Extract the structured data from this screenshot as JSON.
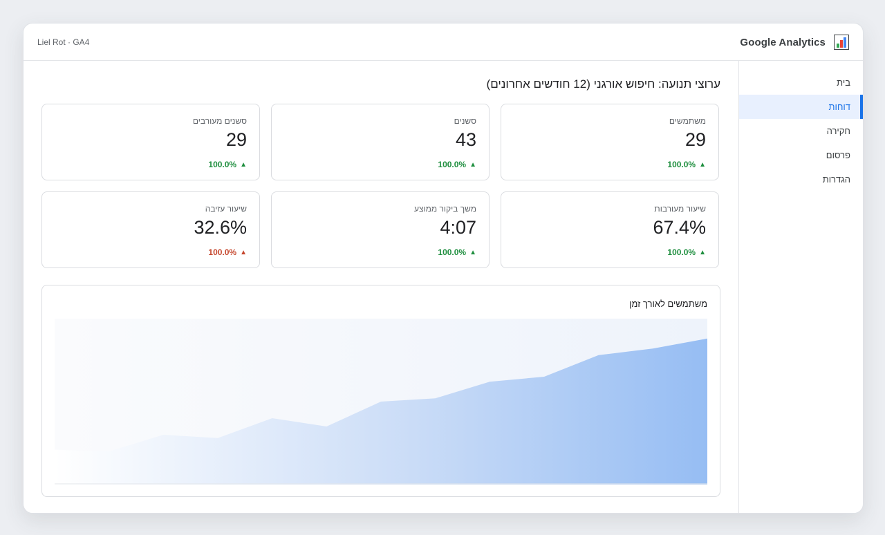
{
  "topbar": {
    "account": "Liel Rot · GA4",
    "brand": "Google Analytics",
    "logo_icon": "analytics-logo-icon"
  },
  "sidebar": {
    "items": [
      {
        "label": "בית",
        "active": false
      },
      {
        "label": "דוחות",
        "active": true
      },
      {
        "label": "חקירה",
        "active": false
      },
      {
        "label": "פרסום",
        "active": false
      },
      {
        "label": "הגדרות",
        "active": false
      }
    ]
  },
  "page_title": "ערוצי תנועה: חיפוש אורגני (12 חודשים אחרונים)",
  "metrics": [
    {
      "label": "משתמשים",
      "value": "29",
      "delta": "100.0%",
      "trend": "up",
      "color": "#1e8e3e"
    },
    {
      "label": "סשנים",
      "value": "43",
      "delta": "100.0%",
      "trend": "up",
      "color": "#1e8e3e"
    },
    {
      "label": "סשנים מעורבים",
      "value": "29",
      "delta": "100.0%",
      "trend": "up",
      "color": "#1e8e3e"
    },
    {
      "label": "שיעור מעורבות",
      "value": "67.4%",
      "delta": "100.0%",
      "trend": "up",
      "color": "#1e8e3e"
    },
    {
      "label": "משך ביקור ממוצע",
      "value": "4:07",
      "delta": "100.0%",
      "trend": "up",
      "color": "#1e8e3e"
    },
    {
      "label": "שיעור עזיבה",
      "value": "32.6%",
      "delta": "100.0%",
      "trend": "up",
      "color": "#c5462d"
    }
  ],
  "chart": {
    "title": "משתמשים לאורך זמן"
  },
  "chart_data": {
    "type": "area",
    "title": "משתמשים לאורך זמן",
    "x": [
      1,
      2,
      3,
      4,
      5,
      6,
      7,
      8,
      9,
      10,
      11,
      12,
      13
    ],
    "values": [
      0.21,
      0.2,
      0.3,
      0.28,
      0.4,
      0.35,
      0.5,
      0.52,
      0.62,
      0.65,
      0.78,
      0.82,
      0.88
    ],
    "ylim": [
      0,
      1
    ],
    "xlabel": "",
    "ylabel": "",
    "grid": false,
    "color": "#8ab4f8"
  }
}
